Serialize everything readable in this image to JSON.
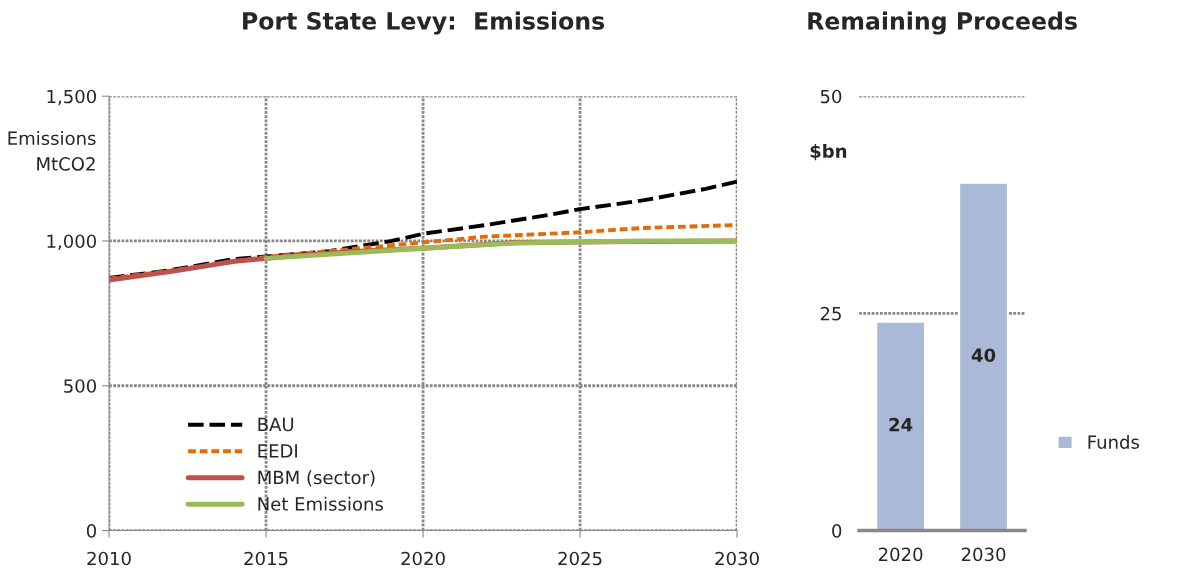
{
  "chart_data": [
    {
      "type": "line",
      "title": "Port State Levy:  Emissions",
      "ylabel": "Emissions\nMtCO2",
      "xlim": [
        2010,
        2030
      ],
      "xticks": [
        2010,
        2015,
        2020,
        2025,
        2030
      ],
      "ylim": [
        0,
        1500
      ],
      "yticks": [
        0,
        {
          "value": 500,
          "label": "500"
        },
        {
          "value": 1000,
          "label": "1,000"
        },
        {
          "value": 1500,
          "label": "1,500"
        }
      ],
      "grid": true,
      "legend": "bottom left",
      "series": [
        {
          "name": "BAU",
          "color": "#000000",
          "line_style": "dashed",
          "x": [
            2010,
            2012,
            2014,
            2016,
            2017,
            2019,
            2020,
            2022,
            2024,
            2025,
            2027,
            2029,
            2030
          ],
          "values": [
            872,
            900,
            938,
            955,
            965,
            1000,
            1025,
            1055,
            1090,
            1110,
            1140,
            1180,
            1205
          ]
        },
        {
          "name": "EEDI",
          "color": "#e36c09",
          "line_style": "dotted",
          "x": [
            2010,
            2012,
            2015,
            2018,
            2020,
            2022,
            2025,
            2027,
            2030
          ],
          "values": [
            870,
            898,
            945,
            975,
            995,
            1015,
            1030,
            1045,
            1055
          ]
        },
        {
          "name": "MBM (sector)",
          "color": "#c0504d",
          "line_style": "solid",
          "x": [
            2010,
            2012,
            2014,
            2016,
            2018,
            2020,
            2023,
            2030
          ],
          "values": [
            865,
            895,
            930,
            950,
            965,
            975,
            995,
            1000
          ]
        },
        {
          "name": "Net Emissions",
          "color": "#9bbb59",
          "line_style": "solid",
          "x": [
            2015,
            2020,
            2023,
            2027,
            2030
          ],
          "values": [
            940,
            975,
            993,
            1000,
            1000
          ]
        }
      ]
    },
    {
      "type": "bar",
      "title": "Remaining Proceeds",
      "ylabel": "$bn",
      "categories": [
        "2020",
        "2030"
      ],
      "ylim": [
        0,
        50
      ],
      "yticks": [
        0,
        25,
        50
      ],
      "grid": "y",
      "legend": "right",
      "data_labels": true,
      "series": [
        {
          "name": "Funds",
          "color": "#aab9d7",
          "values": [
            24,
            40
          ]
        }
      ]
    }
  ]
}
